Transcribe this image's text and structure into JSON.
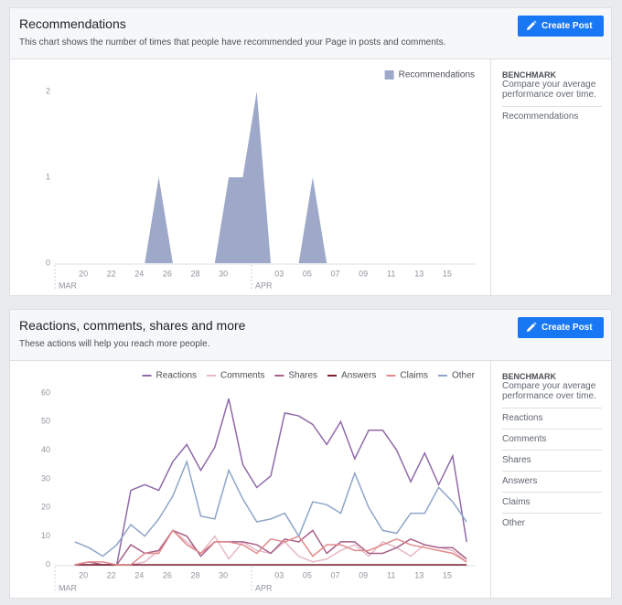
{
  "panels": [
    {
      "title": "Recommendations",
      "subtitle": "This chart shows the number of times that people have recommended your Page in posts and comments.",
      "button": "Create Post",
      "benchmark": {
        "title": "BENCHMARK",
        "description": "Compare your average performance over time.",
        "items": [
          "Recommendations"
        ]
      }
    },
    {
      "title": "Reactions, comments, shares and more",
      "subtitle": "These actions will help you reach more people.",
      "button": "Create Post",
      "benchmark": {
        "title": "BENCHMARK",
        "description": "Compare your average performance over time.",
        "items": [
          "Reactions",
          "Comments",
          "Shares",
          "Answers",
          "Claims",
          "Other"
        ]
      }
    }
  ],
  "chart_data": [
    {
      "type": "area",
      "categories": [
        null,
        null,
        "20",
        null,
        "22",
        null,
        "24",
        null,
        "26",
        null,
        "28",
        null,
        "30",
        null,
        null,
        null,
        "03",
        null,
        "05",
        null,
        "07",
        null,
        "09",
        null,
        "11",
        null,
        "13",
        null,
        "15",
        null,
        null
      ],
      "month_labels": [
        "MAR",
        "APR"
      ],
      "series": [
        {
          "name": "Recommendations",
          "color": "#9ea9c9",
          "values": [
            0,
            0,
            0,
            0,
            0,
            0,
            0,
            1,
            0,
            0,
            0,
            0,
            1,
            1,
            2,
            0,
            0,
            0,
            1,
            0,
            0,
            0,
            0,
            0,
            0,
            0,
            0,
            0,
            0,
            0,
            0
          ]
        }
      ],
      "ylim": [
        0,
        2
      ],
      "yticks": [
        0,
        1,
        2
      ],
      "grid": false,
      "legend": "top-right"
    },
    {
      "type": "line",
      "categories": [
        null,
        null,
        "20",
        null,
        "22",
        null,
        "24",
        null,
        "26",
        null,
        "28",
        null,
        "30",
        null,
        null,
        null,
        "03",
        null,
        "05",
        null,
        "07",
        null,
        "09",
        null,
        "11",
        null,
        "13",
        null,
        "15",
        null,
        null
      ],
      "month_labels": [
        "MAR",
        "APR"
      ],
      "series": [
        {
          "name": "Reactions",
          "color": "#8f6aa9",
          "values": [
            null,
            0,
            0,
            0,
            0,
            26,
            28,
            26,
            36,
            42,
            33,
            41,
            58,
            35,
            27,
            31,
            53,
            52,
            49,
            42,
            50,
            37,
            47,
            47,
            40,
            29,
            39,
            28,
            38,
            8,
            null
          ]
        },
        {
          "name": "Comments",
          "color": "#e6b9c6",
          "values": [
            null,
            0,
            0,
            0,
            0,
            0,
            1,
            5,
            12,
            8,
            4,
            10,
            2,
            8,
            5,
            4,
            8,
            3,
            1,
            2,
            5,
            7,
            3,
            8,
            6,
            3,
            7,
            6,
            5,
            1,
            null
          ]
        },
        {
          "name": "Shares",
          "color": "#a8608a",
          "values": [
            null,
            0,
            1,
            0,
            0,
            7,
            4,
            5,
            12,
            10,
            3,
            8,
            8,
            8,
            7,
            4,
            9,
            8,
            12,
            4,
            8,
            8,
            4,
            4,
            6,
            9,
            7,
            6,
            6,
            2,
            null
          ]
        },
        {
          "name": "Answers",
          "color": "#7d1f30",
          "values": [
            null,
            0,
            0,
            0,
            0,
            0,
            0,
            0,
            0,
            0,
            0,
            0,
            0,
            0,
            0,
            0,
            0,
            0,
            0,
            0,
            0,
            0,
            0,
            0,
            0,
            0,
            0,
            0,
            0,
            0,
            null
          ]
        },
        {
          "name": "Claims",
          "color": "#e08a8c",
          "values": [
            null,
            0,
            1,
            1,
            0,
            0,
            4,
            4,
            12,
            7,
            4,
            8,
            8,
            7,
            4,
            9,
            8,
            10,
            3,
            7,
            7,
            5,
            5,
            7,
            9,
            7,
            6,
            5,
            4,
            1,
            null
          ]
        },
        {
          "name": "Other",
          "color": "#8fa5c9",
          "values": [
            null,
            8,
            6,
            3,
            7,
            14,
            10,
            16,
            24,
            36,
            17,
            16,
            33,
            23,
            15,
            16,
            18,
            10,
            22,
            21,
            18,
            32,
            20,
            12,
            11,
            18,
            18,
            27,
            22,
            15,
            null
          ]
        }
      ],
      "ylim": [
        0,
        60
      ],
      "yticks": [
        0,
        10,
        20,
        30,
        40,
        50,
        60
      ],
      "grid": false,
      "legend": "top-right"
    }
  ]
}
